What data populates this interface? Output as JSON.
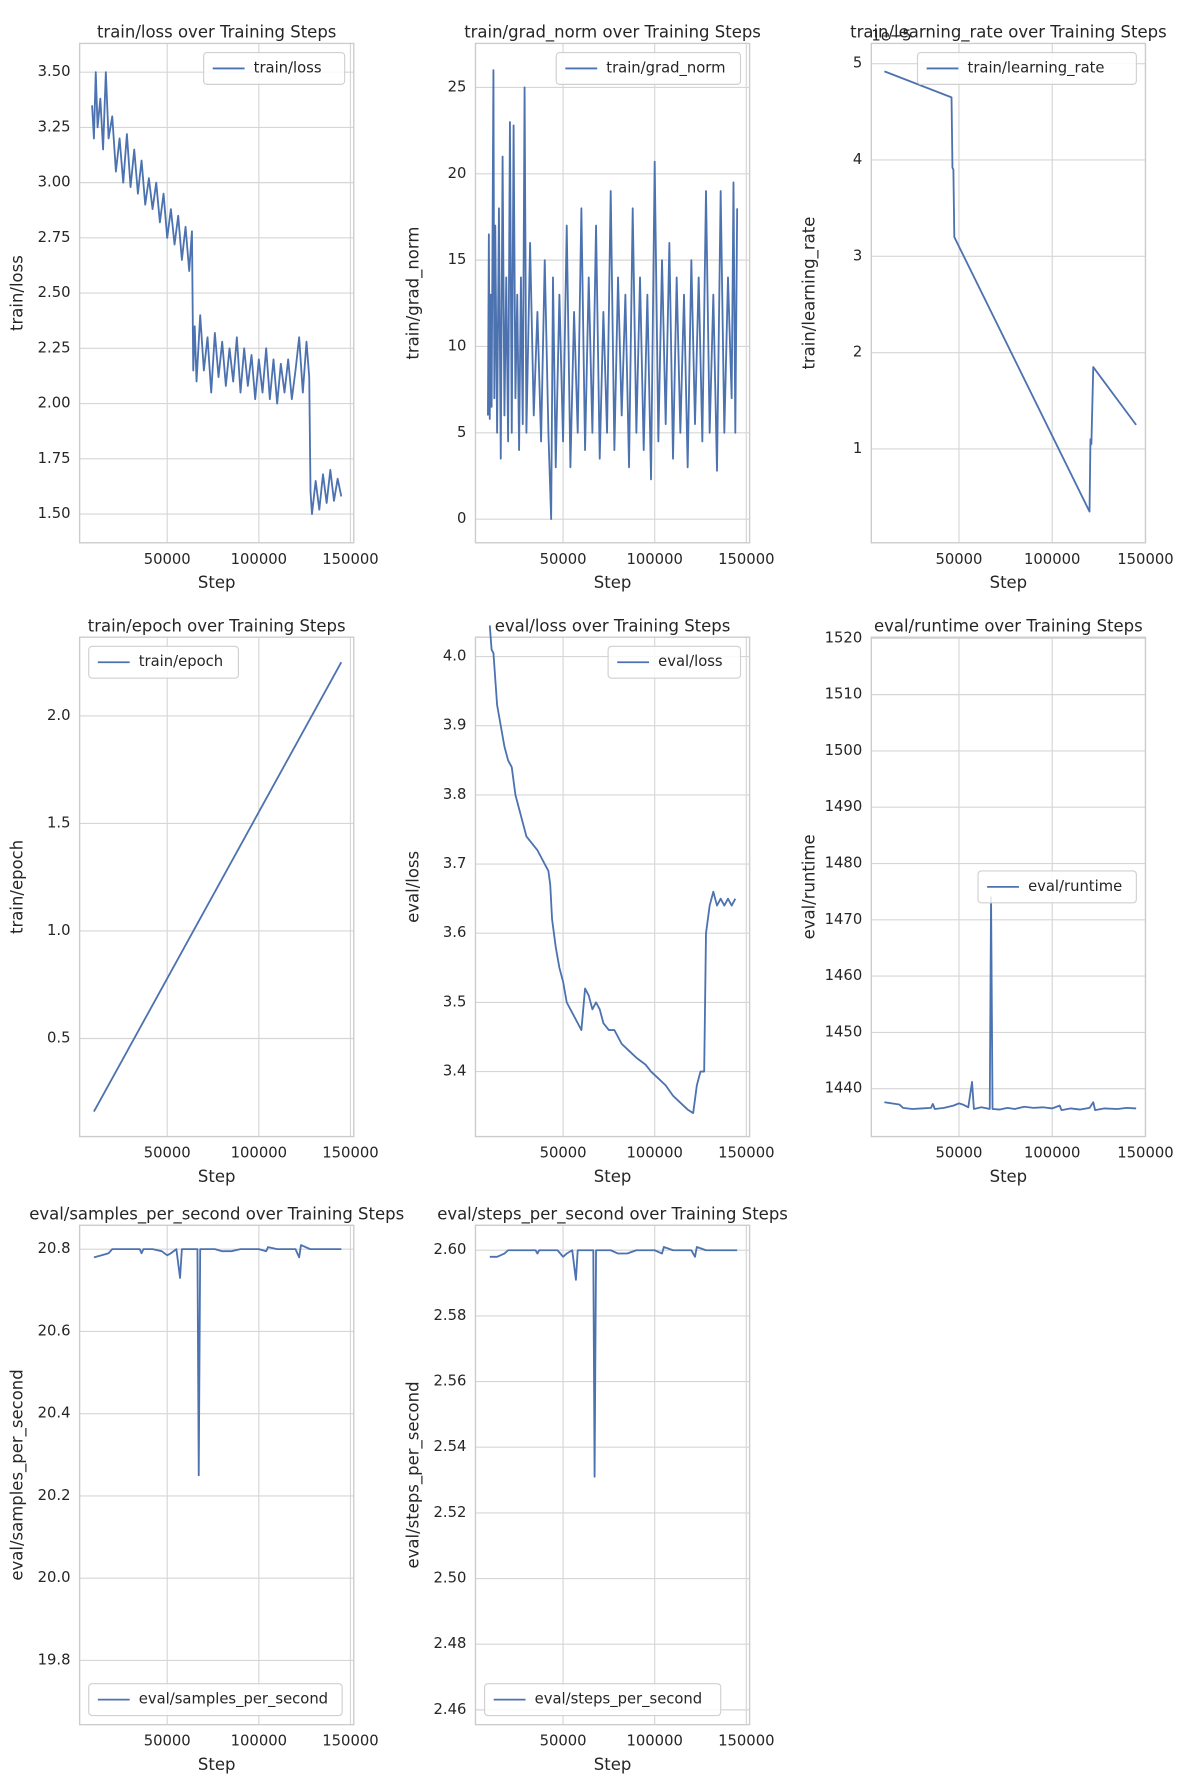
{
  "chart_data": [
    {
      "type": "line",
      "title": "train/loss over Training Steps",
      "xlabel": "Step",
      "ylabel": "train/loss",
      "x": [
        9000,
        10000,
        11000,
        12000,
        13500,
        15000,
        16500,
        18000,
        20000,
        22000,
        24000,
        26000,
        28000,
        30000,
        32000,
        34000,
        36000,
        38000,
        40000,
        42000,
        44000,
        46000,
        48000,
        50000,
        52000,
        54000,
        56000,
        58000,
        60000,
        62000,
        63500,
        64200,
        65000,
        66000,
        68000,
        70000,
        72000,
        74000,
        76000,
        78000,
        80000,
        82000,
        84000,
        86000,
        88000,
        90000,
        92000,
        94000,
        96000,
        98000,
        100000,
        102000,
        104000,
        106000,
        108000,
        110000,
        112000,
        114000,
        116000,
        118000,
        120000,
        122000,
        124000,
        126000,
        127500,
        128200,
        129000,
        131000,
        133000,
        135000,
        137000,
        139000,
        141000,
        143000,
        145000
      ],
      "series": [
        {
          "name": "train/loss",
          "color": "#4c72b0",
          "values": [
            3.35,
            3.2,
            3.5,
            3.25,
            3.38,
            3.15,
            3.5,
            3.2,
            3.3,
            3.05,
            3.2,
            3.0,
            3.22,
            2.98,
            3.15,
            2.95,
            3.1,
            2.9,
            3.02,
            2.88,
            3.0,
            2.82,
            2.95,
            2.75,
            2.88,
            2.72,
            2.85,
            2.65,
            2.8,
            2.6,
            2.78,
            2.15,
            2.35,
            2.1,
            2.4,
            2.15,
            2.3,
            2.05,
            2.32,
            2.12,
            2.28,
            2.08,
            2.25,
            2.1,
            2.3,
            2.05,
            2.25,
            2.08,
            2.22,
            2.02,
            2.2,
            2.05,
            2.25,
            2.02,
            2.2,
            2.0,
            2.18,
            2.05,
            2.2,
            2.02,
            2.15,
            2.3,
            2.05,
            2.28,
            2.12,
            1.6,
            1.5,
            1.65,
            1.52,
            1.68,
            1.55,
            1.7,
            1.56,
            1.66,
            1.58
          ]
        }
      ],
      "xlim": [
        2200,
        151800
      ],
      "ylim": [
        1.37,
        3.63
      ],
      "xticks": [
        50000,
        100000,
        150000
      ],
      "yticks": [
        {
          "value": 1.5,
          "label": "1.50"
        },
        1.75,
        {
          "value": 2,
          "label": "2.00"
        },
        2.25,
        {
          "value": 2.5,
          "label": "2.50"
        },
        2.75,
        {
          "value": 3,
          "label": "3.00"
        },
        3.25,
        {
          "value": 3.5,
          "label": "3.50"
        }
      ],
      "grid": true,
      "legend": "upper right"
    },
    {
      "type": "line",
      "title": "train/grad_norm over Training Steps",
      "xlabel": "Step",
      "ylabel": "train/grad_norm",
      "x": [
        9000,
        9500,
        10000,
        10500,
        11000,
        12000,
        12500,
        13000,
        14000,
        15000,
        16000,
        17000,
        18000,
        19000,
        20000,
        21000,
        22000,
        23000,
        24000,
        25000,
        26000,
        27000,
        28000,
        29000,
        30000,
        32000,
        34000,
        36000,
        38000,
        40000,
        42000,
        43500,
        44500,
        46000,
        48000,
        50000,
        52000,
        54000,
        56000,
        58000,
        60000,
        62000,
        64000,
        66000,
        68000,
        70000,
        72000,
        74000,
        76000,
        78000,
        80000,
        82000,
        84000,
        86000,
        88000,
        90000,
        92000,
        94000,
        96000,
        98000,
        100000,
        102000,
        104000,
        106000,
        108000,
        110000,
        112000,
        114000,
        116000,
        118000,
        120000,
        122000,
        124000,
        126000,
        128000,
        130000,
        132000,
        134000,
        136000,
        138000,
        140000,
        142000,
        143000,
        144000,
        145000
      ],
      "series": [
        {
          "name": "train/grad_norm",
          "color": "#4c72b0",
          "values": [
            6,
            16.5,
            5.8,
            13,
            6.5,
            26,
            7,
            17,
            5,
            18,
            3.5,
            21,
            6,
            14,
            4.5,
            23,
            5,
            22.8,
            7,
            13,
            4,
            14,
            5.5,
            25,
            5,
            16,
            6,
            12,
            4.5,
            15,
            5,
            0,
            14,
            3,
            13,
            4.5,
            17,
            3,
            12,
            5,
            18,
            4,
            14,
            5,
            17,
            3.5,
            12,
            5,
            19,
            4,
            14,
            6,
            13,
            3,
            18,
            5,
            14,
            4,
            13,
            2.3,
            20.7,
            4.5,
            15,
            5.5,
            16,
            3.5,
            14,
            5,
            13,
            3,
            15,
            5.5,
            14,
            4.5,
            19,
            5,
            13,
            2.8,
            19,
            5,
            14,
            7,
            19.5,
            5,
            18
          ]
        }
      ],
      "xlim": [
        2200,
        151800
      ],
      "ylim": [
        -1.37,
        27.55
      ],
      "xticks": [
        50000,
        100000,
        150000
      ],
      "yticks": [
        0,
        5,
        10,
        15,
        20,
        25
      ],
      "grid": true,
      "legend": "upper right"
    },
    {
      "type": "line",
      "title": "train/learning_rate over Training Steps",
      "xlabel": "Step",
      "ylabel": "train/learning_rate",
      "offset_text": "1e−5",
      "x": [
        10000,
        46000,
        46500,
        47000,
        47500,
        120000,
        120500,
        121000,
        122000,
        145000
      ],
      "series": [
        {
          "name": "train/learning_rate",
          "color": "#4c72b0",
          "values": [
            4.92,
            4.65,
            3.92,
            3.9,
            3.2,
            0.35,
            1.1,
            1.05,
            1.85,
            1.25
          ]
        }
      ],
      "xlim": [
        3000,
        150000
      ],
      "ylim": [
        0.026,
        5.21
      ],
      "xticks": [
        50000,
        100000,
        150000
      ],
      "yticks": [
        1,
        2,
        3,
        4,
        5
      ],
      "grid": true,
      "legend": "upper right"
    },
    {
      "type": "line",
      "title": "train/epoch over Training Steps",
      "xlabel": "Step",
      "ylabel": "train/epoch",
      "x": [
        10000,
        145000
      ],
      "series": [
        {
          "name": "train/epoch",
          "color": "#4c72b0",
          "values": [
            0.16,
            2.25
          ]
        }
      ],
      "xlim": [
        2200,
        151800
      ],
      "ylim": [
        0.044,
        2.366
      ],
      "xticks": [
        50000,
        100000,
        150000
      ],
      "yticks": [
        0.5,
        {
          "value": 1,
          "label": "1.0"
        },
        1.5,
        {
          "value": 2,
          "label": "2.0"
        }
      ],
      "grid": true,
      "legend": "upper left"
    },
    {
      "type": "line",
      "title": "eval/loss over Training Steps",
      "xlabel": "Step",
      "ylabel": "eval/loss",
      "x": [
        10000,
        11000,
        12000,
        14000,
        16000,
        18000,
        20000,
        22000,
        24000,
        26000,
        28000,
        30000,
        33000,
        36000,
        38000,
        40000,
        42000,
        43000,
        44000,
        46000,
        48000,
        50000,
        52000,
        54000,
        56000,
        58000,
        60000,
        62000,
        64000,
        66000,
        68000,
        70000,
        72000,
        75000,
        78000,
        82000,
        86000,
        90000,
        95000,
        98000,
        102000,
        106000,
        110000,
        114000,
        118000,
        121000,
        123000,
        125000,
        127000,
        128000,
        130000,
        132000,
        134000,
        136000,
        138000,
        140000,
        142000,
        144000
      ],
      "series": [
        {
          "name": "eval/loss",
          "color": "#4c72b0",
          "values": [
            4.045,
            4.01,
            4.005,
            3.93,
            3.9,
            3.87,
            3.85,
            3.84,
            3.8,
            3.78,
            3.76,
            3.74,
            3.73,
            3.72,
            3.71,
            3.7,
            3.69,
            3.67,
            3.62,
            3.58,
            3.55,
            3.53,
            3.5,
            3.49,
            3.48,
            3.47,
            3.46,
            3.52,
            3.51,
            3.49,
            3.5,
            3.49,
            3.47,
            3.46,
            3.46,
            3.44,
            3.43,
            3.42,
            3.41,
            3.4,
            3.39,
            3.38,
            3.365,
            3.355,
            3.345,
            3.34,
            3.38,
            3.4,
            3.4,
            3.6,
            3.64,
            3.66,
            3.64,
            3.65,
            3.64,
            3.65,
            3.64,
            3.65
          ]
        }
      ],
      "xlim": [
        2200,
        151800
      ],
      "ylim": [
        3.306,
        4.028
      ],
      "xticks": [
        50000,
        100000,
        150000
      ],
      "yticks": [
        3.4,
        3.5,
        3.6,
        3.7,
        3.8,
        3.9,
        {
          "value": 4,
          "label": "4.0"
        }
      ],
      "grid": true,
      "legend": "upper right"
    },
    {
      "type": "line",
      "title": "eval/runtime over Training Steps",
      "xlabel": "Step",
      "ylabel": "eval/runtime",
      "x": [
        10000,
        14000,
        18000,
        20000,
        25000,
        30000,
        35000,
        36000,
        37000,
        42000,
        47000,
        50000,
        52000,
        55000,
        57000,
        58000,
        62000,
        65000,
        66500,
        67200,
        68000,
        72000,
        76000,
        80000,
        85000,
        90000,
        95000,
        100000,
        104000,
        105000,
        110000,
        115000,
        120000,
        122000,
        123000,
        128000,
        135000,
        140000,
        145000
      ],
      "series": [
        {
          "name": "eval/runtime",
          "color": "#4c72b0",
          "values": [
            1437.6,
            1437.4,
            1437.2,
            1436.6,
            1436.4,
            1436.5,
            1436.6,
            1437.3,
            1436.4,
            1436.6,
            1437,
            1437.4,
            1437.2,
            1436.7,
            1441.2,
            1436.4,
            1436.7,
            1436.5,
            1436.4,
            1474,
            1436.4,
            1436.3,
            1436.6,
            1436.4,
            1436.8,
            1436.6,
            1436.7,
            1436.5,
            1437,
            1436.2,
            1436.5,
            1436.3,
            1436.6,
            1437.6,
            1436.2,
            1436.5,
            1436.4,
            1436.6,
            1436.5
          ]
        }
      ],
      "xlim": [
        3000,
        150000
      ],
      "ylim": [
        1431.5,
        1520.2
      ],
      "xticks": [
        50000,
        100000,
        150000
      ],
      "yticks": [
        1440,
        1450,
        1460,
        1470,
        1480,
        1490,
        1500,
        1510,
        1520
      ],
      "grid": true,
      "legend": "center right"
    },
    {
      "type": "line",
      "title": "eval/samples_per_second over Training Steps",
      "xlabel": "Step",
      "ylabel": "eval/samples_per_second",
      "x": [
        10000,
        14000,
        18000,
        20000,
        25000,
        30000,
        35000,
        36000,
        37000,
        42000,
        47000,
        50000,
        52000,
        55000,
        57000,
        58000,
        62000,
        66500,
        67200,
        68000,
        72000,
        76000,
        80000,
        85000,
        90000,
        95000,
        100000,
        104000,
        105000,
        110000,
        115000,
        120000,
        122000,
        123000,
        128000,
        135000,
        140000,
        145000
      ],
      "series": [
        {
          "name": "eval/samples_per_second",
          "color": "#4c72b0",
          "values": [
            20.78,
            20.785,
            20.79,
            20.8,
            20.8,
            20.8,
            20.8,
            20.79,
            20.8,
            20.8,
            20.795,
            20.785,
            20.79,
            20.8,
            20.73,
            20.8,
            20.8,
            20.8,
            20.25,
            20.8,
            20.8,
            20.8,
            20.795,
            20.795,
            20.8,
            20.8,
            20.8,
            20.795,
            20.805,
            20.8,
            20.8,
            20.8,
            20.78,
            20.81,
            20.8,
            20.8,
            20.8,
            20.8
          ]
        }
      ],
      "xlim": [
        2200,
        151800
      ],
      "ylim": [
        19.644,
        20.858
      ],
      "xticks": [
        50000,
        100000,
        150000
      ],
      "yticks": [
        19.8,
        {
          "value": 20,
          "label": "20.0"
        },
        20.2,
        20.4,
        20.6,
        20.8
      ],
      "grid": true,
      "legend": "lower left"
    },
    {
      "type": "line",
      "title": "eval/steps_per_second over Training Steps",
      "xlabel": "Step",
      "ylabel": "eval/steps_per_second",
      "x": [
        10000,
        14000,
        18000,
        20000,
        25000,
        30000,
        35000,
        36000,
        37000,
        42000,
        47000,
        50000,
        52000,
        55000,
        57000,
        58000,
        62000,
        66500,
        67200,
        68000,
        72000,
        76000,
        80000,
        85000,
        90000,
        95000,
        100000,
        104000,
        105000,
        110000,
        115000,
        120000,
        122000,
        123000,
        128000,
        135000,
        140000,
        145000
      ],
      "series": [
        {
          "name": "eval/steps_per_second",
          "color": "#4c72b0",
          "values": [
            2.598,
            2.598,
            2.599,
            2.6,
            2.6,
            2.6,
            2.6,
            2.599,
            2.6,
            2.6,
            2.6,
            2.598,
            2.599,
            2.6,
            2.591,
            2.6,
            2.6,
            2.6,
            2.531,
            2.6,
            2.6,
            2.6,
            2.599,
            2.599,
            2.6,
            2.6,
            2.6,
            2.599,
            2.601,
            2.6,
            2.6,
            2.6,
            2.598,
            2.601,
            2.6,
            2.6,
            2.6,
            2.6
          ]
        }
      ],
      "xlim": [
        2200,
        151800
      ],
      "ylim": [
        2.4555,
        2.6076
      ],
      "xticks": [
        50000,
        100000,
        150000
      ],
      "yticks": [
        2.46,
        2.48,
        {
          "value": 2.5,
          "label": "2.50"
        },
        2.52,
        2.54,
        2.56,
        2.58,
        {
          "value": 2.6,
          "label": "2.60"
        }
      ],
      "grid": true,
      "legend": "lower left"
    }
  ]
}
